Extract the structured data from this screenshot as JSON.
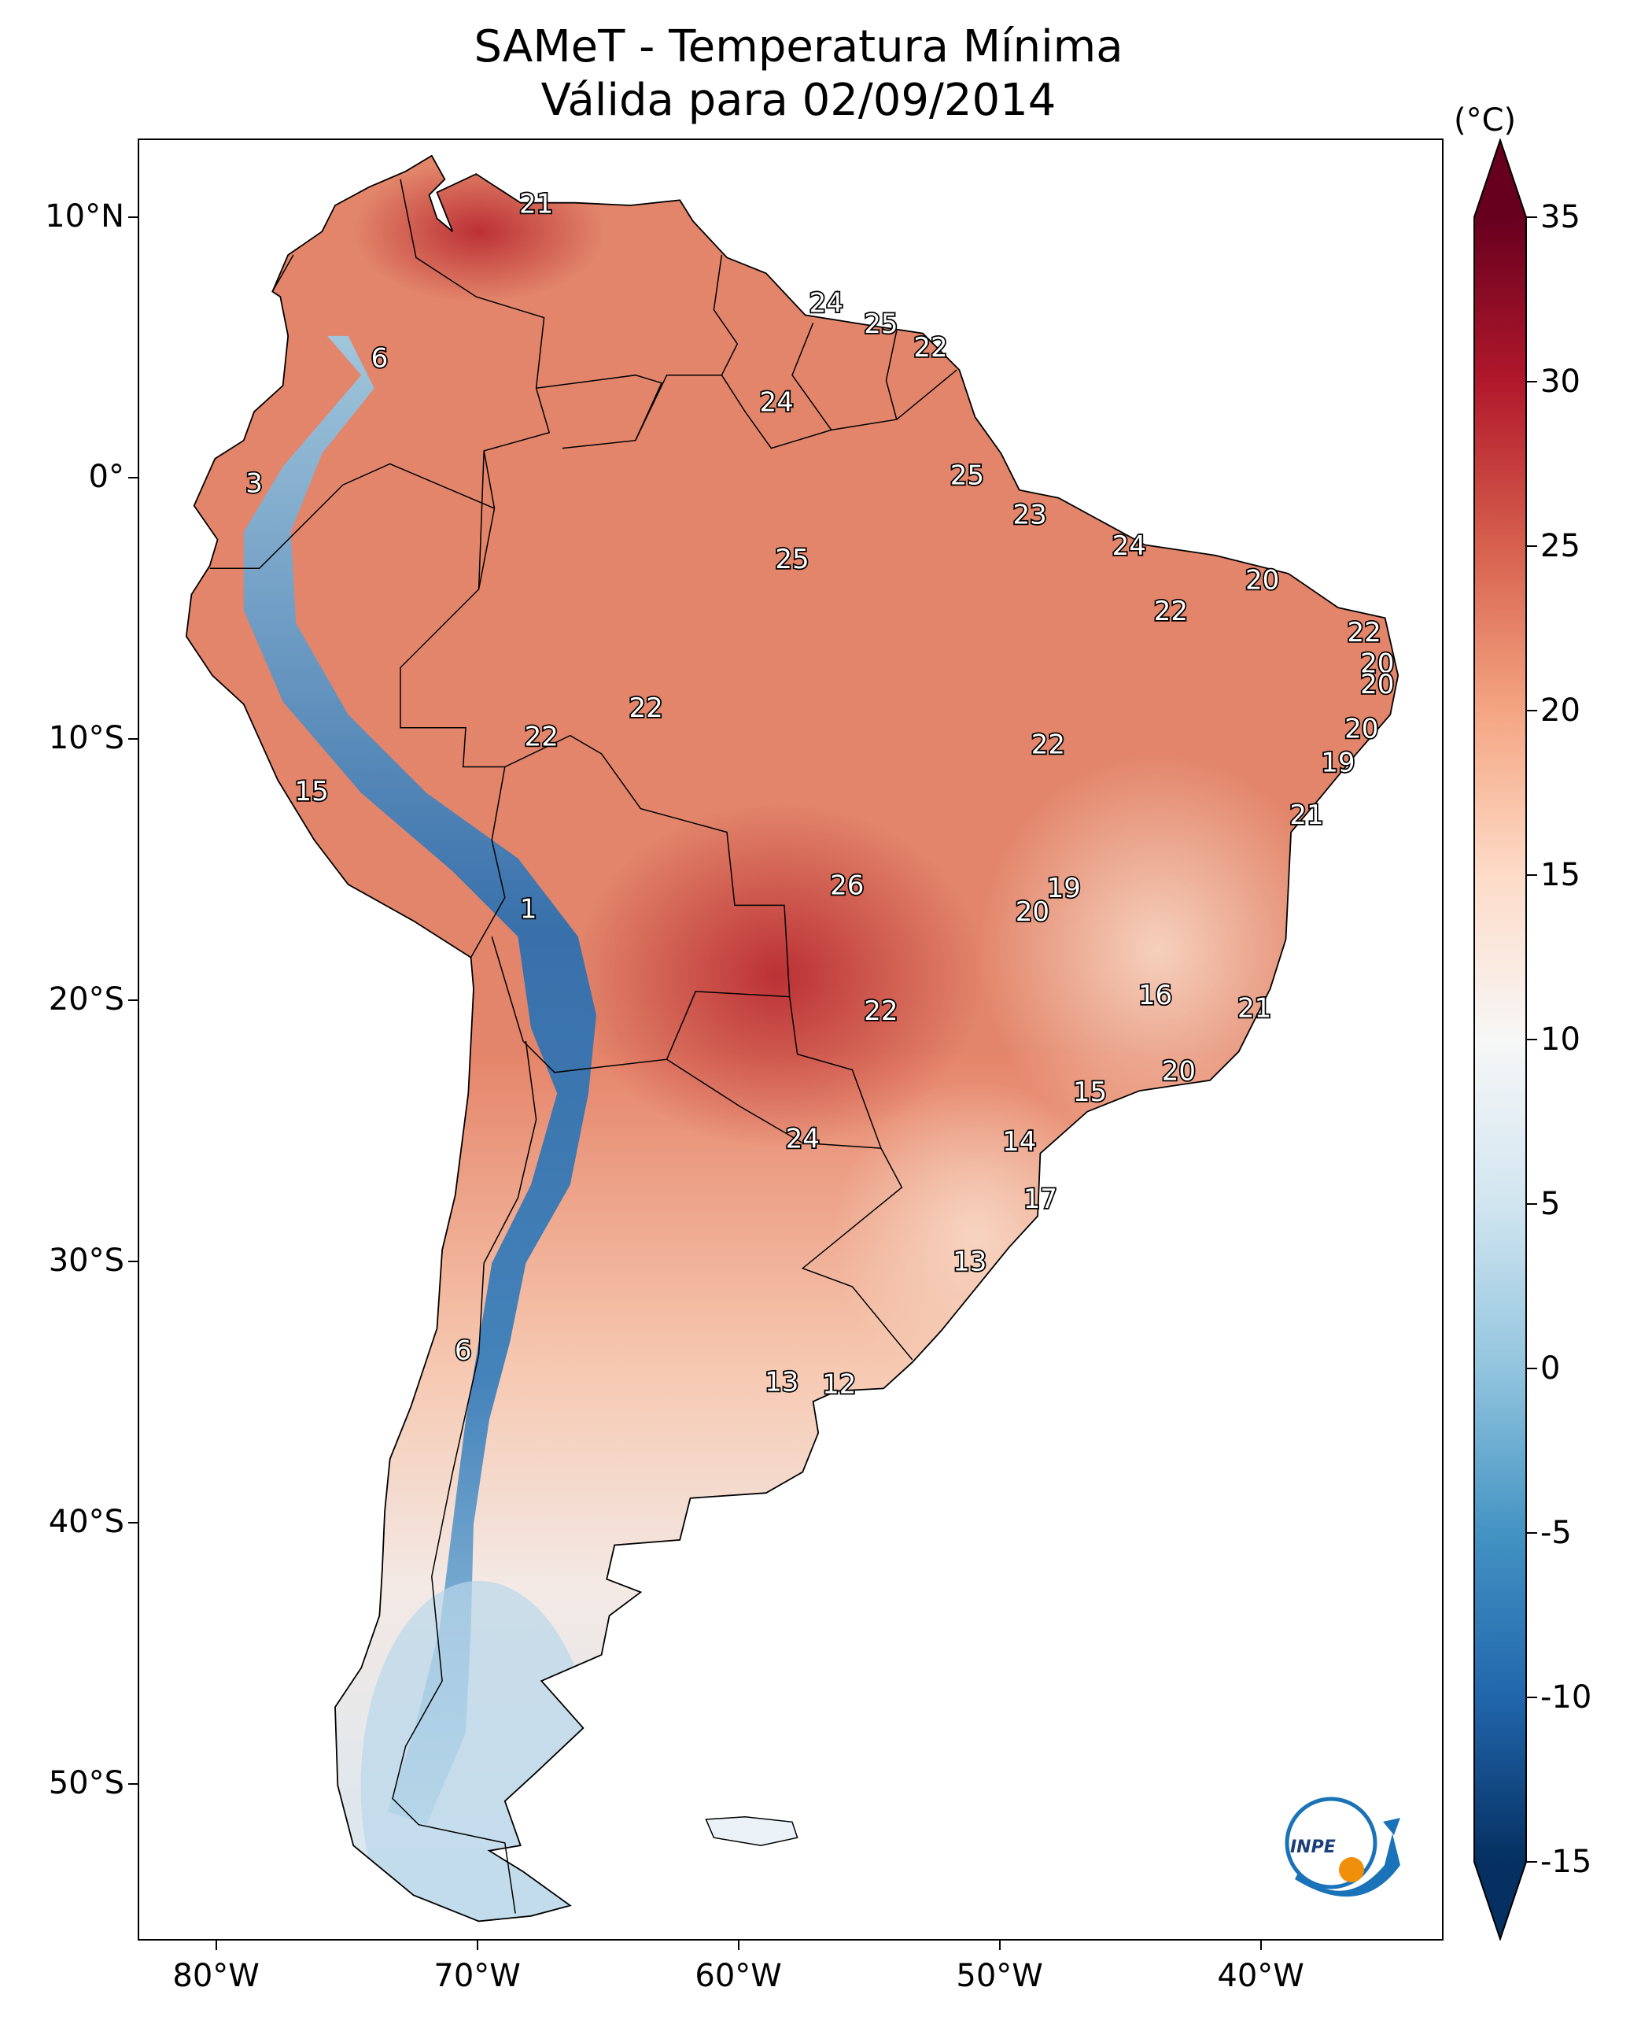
{
  "title": {
    "line1": "SAMeT - Temperatura Mínima",
    "line2": "Válida para 02/09/2014"
  },
  "map": {
    "extent": {
      "lon_min": -83,
      "lon_max": -33,
      "lat_min": -56,
      "lat_max": 13
    },
    "lat_ticks": [
      {
        "value": 10,
        "label": "10°N"
      },
      {
        "value": 0,
        "label": "0°"
      },
      {
        "value": -10,
        "label": "10°S"
      },
      {
        "value": -20,
        "label": "20°S"
      },
      {
        "value": -30,
        "label": "30°S"
      },
      {
        "value": -40,
        "label": "40°S"
      },
      {
        "value": -50,
        "label": "50°S"
      }
    ],
    "lon_ticks": [
      {
        "value": -80,
        "label": "80°W"
      },
      {
        "value": -70,
        "label": "70°W"
      },
      {
        "value": -60,
        "label": "60°W"
      },
      {
        "value": -50,
        "label": "50°W"
      },
      {
        "value": -40,
        "label": "40°W"
      }
    ],
    "station_labels": [
      {
        "lon": -67.8,
        "lat": 10.5,
        "text": "21"
      },
      {
        "lon": -56.7,
        "lat": 6.7,
        "text": "24"
      },
      {
        "lon": -54.6,
        "lat": 5.9,
        "text": "25"
      },
      {
        "lon": -52.7,
        "lat": 5.0,
        "text": "22"
      },
      {
        "lon": -73.8,
        "lat": 4.6,
        "text": "6"
      },
      {
        "lon": -58.6,
        "lat": 2.9,
        "text": "24"
      },
      {
        "lon": -78.6,
        "lat": -0.2,
        "text": "3"
      },
      {
        "lon": -51.3,
        "lat": 0.1,
        "text": "25"
      },
      {
        "lon": -48.9,
        "lat": -1.4,
        "text": "23"
      },
      {
        "lon": -45.1,
        "lat": -2.6,
        "text": "24"
      },
      {
        "lon": -40.0,
        "lat": -3.9,
        "text": "20"
      },
      {
        "lon": -58.0,
        "lat": -3.1,
        "text": "25"
      },
      {
        "lon": -43.5,
        "lat": -5.1,
        "text": "22"
      },
      {
        "lon": -36.1,
        "lat": -5.9,
        "text": "22"
      },
      {
        "lon": -35.6,
        "lat": -7.1,
        "text": "20"
      },
      {
        "lon": -35.6,
        "lat": -7.9,
        "text": "20"
      },
      {
        "lon": -63.6,
        "lat": -8.8,
        "text": "22"
      },
      {
        "lon": -67.6,
        "lat": -9.9,
        "text": "22"
      },
      {
        "lon": -48.2,
        "lat": -10.2,
        "text": "22"
      },
      {
        "lon": -36.2,
        "lat": -9.6,
        "text": "20"
      },
      {
        "lon": -37.1,
        "lat": -10.9,
        "text": "19"
      },
      {
        "lon": -76.4,
        "lat": -12.0,
        "text": "15"
      },
      {
        "lon": -38.3,
        "lat": -12.9,
        "text": "21"
      },
      {
        "lon": -55.9,
        "lat": -15.6,
        "text": "26"
      },
      {
        "lon": -47.6,
        "lat": -15.7,
        "text": "19"
      },
      {
        "lon": -48.8,
        "lat": -16.6,
        "text": "20"
      },
      {
        "lon": -68.1,
        "lat": -16.5,
        "text": "1"
      },
      {
        "lon": -44.1,
        "lat": -19.8,
        "text": "16"
      },
      {
        "lon": -40.3,
        "lat": -20.3,
        "text": "21"
      },
      {
        "lon": -54.6,
        "lat": -20.4,
        "text": "22"
      },
      {
        "lon": -43.2,
        "lat": -22.7,
        "text": "20"
      },
      {
        "lon": -46.6,
        "lat": -23.5,
        "text": "15"
      },
      {
        "lon": -57.6,
        "lat": -25.3,
        "text": "24"
      },
      {
        "lon": -49.3,
        "lat": -25.4,
        "text": "14"
      },
      {
        "lon": -48.5,
        "lat": -27.6,
        "text": "17"
      },
      {
        "lon": -51.2,
        "lat": -30.0,
        "text": "13"
      },
      {
        "lon": -70.6,
        "lat": -33.4,
        "text": "6"
      },
      {
        "lon": -58.4,
        "lat": -34.6,
        "text": "13"
      },
      {
        "lon": -56.2,
        "lat": -34.7,
        "text": "12"
      }
    ]
  },
  "colorbar": {
    "unit": "(°C)",
    "min": -15,
    "max": 35,
    "colormap": "RdBu_r",
    "colors": [
      "#053061",
      "#2166ac",
      "#4393c3",
      "#92c5de",
      "#d1e5f0",
      "#f7f7f7",
      "#fddbc7",
      "#f4a582",
      "#d6604d",
      "#b2182b",
      "#67001f"
    ],
    "ticks": [
      {
        "value": 35,
        "label": "35"
      },
      {
        "value": 30,
        "label": "30"
      },
      {
        "value": 25,
        "label": "25"
      },
      {
        "value": 20,
        "label": "20"
      },
      {
        "value": 15,
        "label": "15"
      },
      {
        "value": 10,
        "label": "10"
      },
      {
        "value": 5,
        "label": "5"
      },
      {
        "value": 0,
        "label": "0"
      },
      {
        "value": -5,
        "label": "-5"
      },
      {
        "value": -10,
        "label": "-10"
      },
      {
        "value": -15,
        "label": "-15"
      }
    ]
  },
  "logo": {
    "text": "INPE",
    "colors": {
      "ring": "#1a73b8",
      "sun": "#f0900a"
    }
  }
}
